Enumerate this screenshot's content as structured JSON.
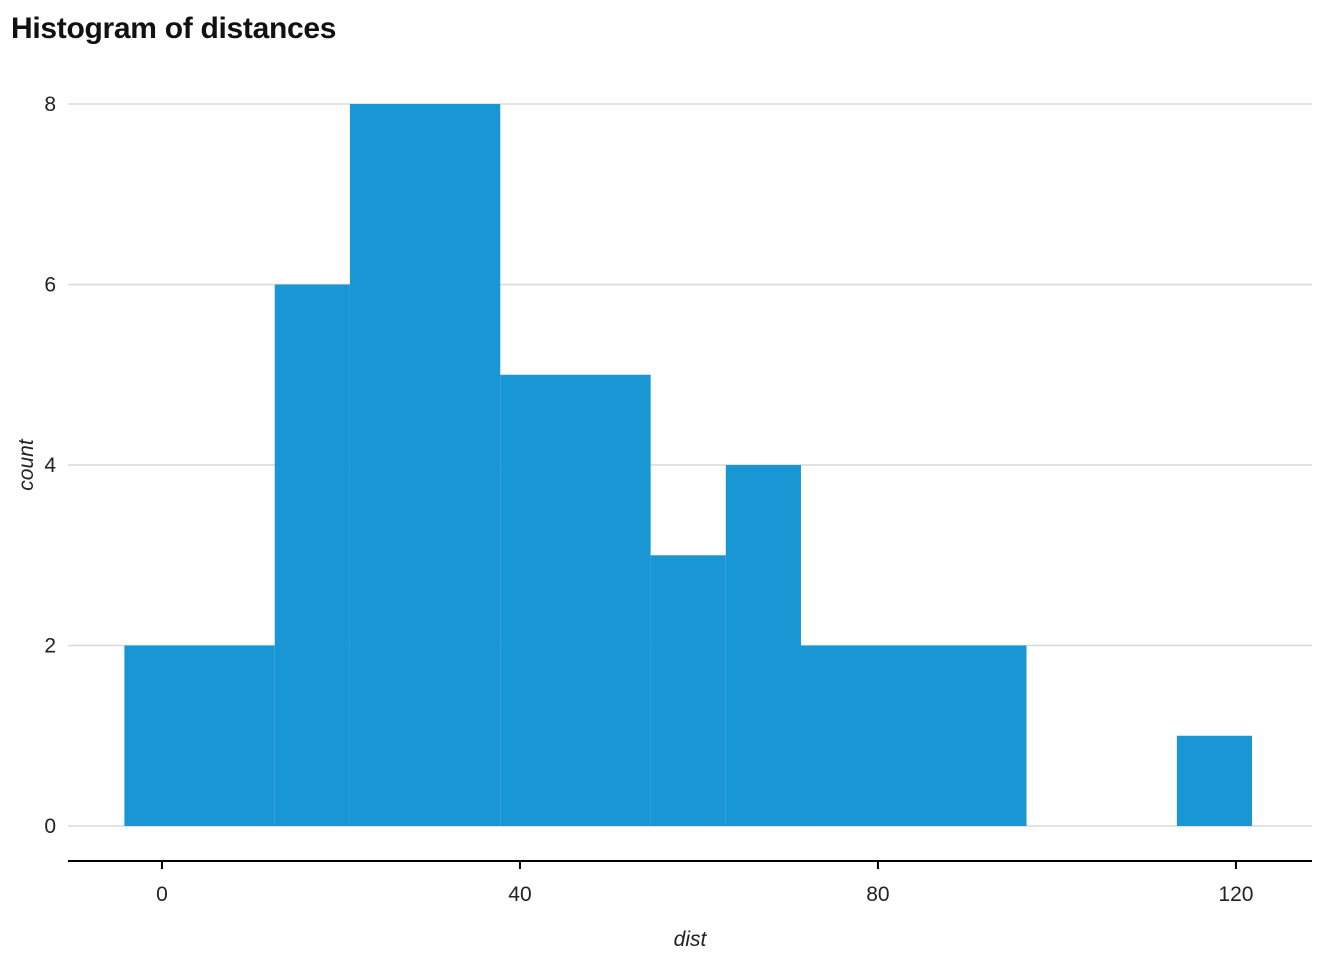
{
  "chart_data": {
    "type": "bar",
    "title": "Histogram of distances",
    "xlabel": "dist",
    "ylabel": "count",
    "bar_color": "#1997d4",
    "grid": true,
    "grid_color": "#d9d9d9",
    "axis_color": "#000000",
    "xlim": [
      -10.5,
      128.5
    ],
    "ylim": [
      0,
      8
    ],
    "x_ticks": [
      0,
      40,
      80,
      120
    ],
    "y_ticks": [
      0,
      2,
      4,
      6,
      8
    ],
    "bins": [
      {
        "x0": -4.2,
        "x1": 12.6,
        "count": 2
      },
      {
        "x0": 12.6,
        "x1": 21.0,
        "count": 6
      },
      {
        "x0": 21.0,
        "x1": 37.8,
        "count": 8
      },
      {
        "x0": 37.8,
        "x1": 54.6,
        "count": 5
      },
      {
        "x0": 54.6,
        "x1": 63.0,
        "count": 3
      },
      {
        "x0": 63.0,
        "x1": 71.4,
        "count": 4
      },
      {
        "x0": 71.4,
        "x1": 96.6,
        "count": 2
      },
      {
        "x0": 113.4,
        "x1": 121.8,
        "count": 1
      }
    ]
  }
}
